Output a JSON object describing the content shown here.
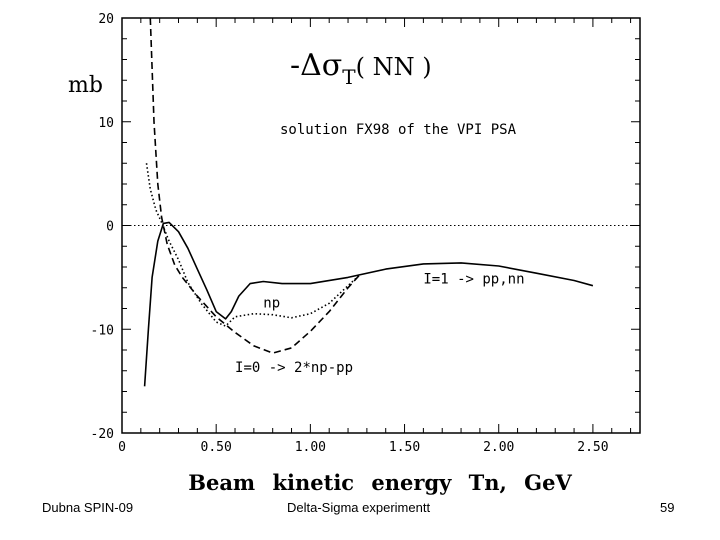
{
  "chart_data": {
    "type": "line",
    "title": "-Δσ",
    "title_subscript": "T",
    "title_suffix": "( NN )",
    "subtitle": "solution FX98 of the VPI PSA",
    "ylabel": "mb",
    "xlabel": "Beam kinetic energy Tn, GeV",
    "xlim": [
      0,
      2.75
    ],
    "ylim": [
      -20,
      20
    ],
    "x_ticks": [
      0,
      0.5,
      1.0,
      1.5,
      2.0,
      2.5
    ],
    "x_tick_labels": [
      "0",
      "0.50",
      "1.00",
      "1.50",
      "2.00",
      "2.50"
    ],
    "y_ticks": [
      20,
      10,
      0,
      -10,
      -20
    ],
    "y_tick_labels": [
      "20",
      "10",
      "0",
      "-10",
      "-20"
    ],
    "reference_line_y": 0,
    "series": [
      {
        "name": "I=1 -> pp,nn",
        "style": "solid",
        "x": [
          0.12,
          0.14,
          0.16,
          0.19,
          0.22,
          0.25,
          0.3,
          0.35,
          0.4,
          0.45,
          0.5,
          0.55,
          0.58,
          0.62,
          0.68,
          0.75,
          0.85,
          1.0,
          1.2,
          1.4,
          1.6,
          1.8,
          2.0,
          2.2,
          2.4,
          2.5
        ],
        "y": [
          -15.5,
          -10,
          -5,
          -1.5,
          0.2,
          0.3,
          -0.6,
          -2.2,
          -4.2,
          -6.2,
          -8.3,
          -9.0,
          -8.3,
          -6.8,
          -5.6,
          -5.4,
          -5.6,
          -5.6,
          -5.0,
          -4.2,
          -3.7,
          -3.6,
          -3.9,
          -4.6,
          -5.3,
          -5.8
        ]
      },
      {
        "name": "np",
        "style": "dotted",
        "x": [
          0.13,
          0.15,
          0.18,
          0.21,
          0.25,
          0.3,
          0.35,
          0.42,
          0.5,
          0.55,
          0.6,
          0.7,
          0.8,
          0.9,
          1.0,
          1.1,
          1.2,
          1.26
        ],
        "y": [
          6.0,
          3.5,
          1.5,
          0.3,
          -1.5,
          -3.3,
          -5.5,
          -7.5,
          -9.3,
          -9.7,
          -8.8,
          -8.5,
          -8.6,
          -8.9,
          -8.5,
          -7.5,
          -5.8,
          -4.8
        ]
      },
      {
        "name": "I=0 -> 2*np-pp",
        "style": "dashed",
        "x": [
          0.15,
          0.17,
          0.19,
          0.21,
          0.24,
          0.28,
          0.32,
          0.4,
          0.5,
          0.6,
          0.7,
          0.8,
          0.9,
          1.0,
          1.1,
          1.2,
          1.26
        ],
        "y": [
          20,
          10,
          4,
          0.8,
          -1.8,
          -3.8,
          -5.0,
          -6.8,
          -8.8,
          -10.3,
          -11.6,
          -12.3,
          -11.8,
          -10.2,
          -8.3,
          -6.0,
          -4.8
        ]
      }
    ],
    "annotations": [
      {
        "text": "I=1 -> pp,nn",
        "x": 1.6,
        "y": -5.6
      },
      {
        "text": "np",
        "x": 0.75,
        "y": -7.9
      },
      {
        "text": "I=0 -> 2*np-pp",
        "x": 0.6,
        "y": -14.1
      }
    ]
  },
  "footer": {
    "left": "Dubna SPIN-09",
    "center": "Delta-Sigma experimentt",
    "right": "59"
  }
}
